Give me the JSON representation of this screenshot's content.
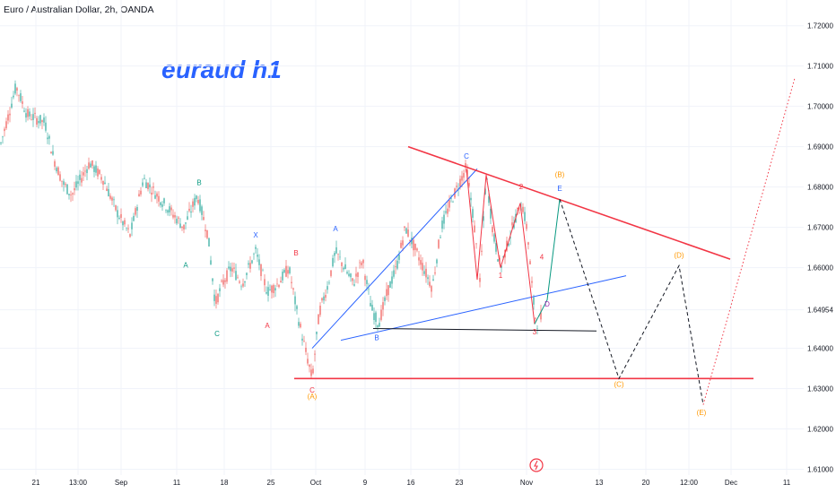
{
  "header": {
    "title": "Euro / Australian Dollar, 2h, OANDA"
  },
  "annotation": {
    "headline": "euraud h1"
  },
  "colors": {
    "bull": "#26a69a",
    "bear": "#ef5350",
    "red_line": "#f23645",
    "blue_line": "#2962ff",
    "black_line": "#131722",
    "orange": "#ff9800",
    "teal": "#089981",
    "purple": "#9c27b0",
    "grid": "#f0f3fa"
  },
  "chart_data": {
    "type": "candlestick",
    "symbol": "Euro / Australian Dollar",
    "interval": "2h",
    "source": "OANDA",
    "ylim": [
      1.605,
      1.723
    ],
    "y_ticks": [
      "1.72000",
      "1.71000",
      "1.70000",
      "1.69000",
      "1.68000",
      "1.67000",
      "1.66000",
      "1.64954",
      "1.64000",
      "1.63000",
      "1.62000",
      "1.61000"
    ],
    "x_ticks": [
      "21",
      "13:00",
      "Sep",
      "11",
      "18",
      "25",
      "Oct",
      "9",
      "16",
      "23",
      "Nov",
      "13",
      "20",
      "12:00",
      "Dec",
      "11"
    ],
    "price_anchors": [
      [
        0,
        1.69
      ],
      [
        18,
        1.705
      ],
      [
        30,
        1.698
      ],
      [
        50,
        1.696
      ],
      [
        60,
        1.687
      ],
      [
        70,
        1.681
      ],
      [
        80,
        1.678
      ],
      [
        100,
        1.686
      ],
      [
        115,
        1.682
      ],
      [
        130,
        1.674
      ],
      [
        145,
        1.668
      ],
      [
        160,
        1.682
      ],
      [
        175,
        1.678
      ],
      [
        190,
        1.674
      ],
      [
        205,
        1.67
      ],
      [
        220,
        1.678
      ],
      [
        232,
        1.668
      ],
      [
        240,
        1.651
      ],
      [
        248,
        1.656
      ],
      [
        258,
        1.66
      ],
      [
        270,
        1.656
      ],
      [
        285,
        1.664
      ],
      [
        298,
        1.654
      ],
      [
        310,
        1.656
      ],
      [
        322,
        1.66
      ],
      [
        332,
        1.648
      ],
      [
        340,
        1.64
      ],
      [
        348,
        1.6325
      ],
      [
        356,
        1.649
      ],
      [
        366,
        1.656
      ],
      [
        374,
        1.664
      ],
      [
        384,
        1.66
      ],
      [
        394,
        1.656
      ],
      [
        404,
        1.662
      ],
      [
        414,
        1.65
      ],
      [
        422,
        1.646
      ],
      [
        432,
        1.654
      ],
      [
        442,
        1.66
      ],
      [
        452,
        1.67
      ],
      [
        462,
        1.665
      ],
      [
        472,
        1.66
      ],
      [
        482,
        1.655
      ],
      [
        492,
        1.67
      ],
      [
        502,
        1.676
      ],
      [
        510,
        1.68
      ],
      [
        520,
        1.685
      ],
      [
        528,
        1.672
      ],
      [
        535,
        1.656
      ],
      [
        542,
        1.683
      ],
      [
        550,
        1.668
      ],
      [
        558,
        1.66
      ],
      [
        566,
        1.666
      ],
      [
        574,
        1.672
      ],
      [
        582,
        1.676
      ],
      [
        588,
        1.669
      ],
      [
        594,
        1.653
      ],
      [
        598,
        1.646
      ],
      [
        604,
        1.648
      ]
    ],
    "series": [
      {
        "name": "",
        "style": "solid",
        "color": "#2962ff",
        "points": [
          [
            348,
            1.64
          ],
          [
            532,
            1.6845
          ]
        ]
      },
      {
        "name": "",
        "style": "solid",
        "color": "#2962ff",
        "points": [
          [
            380,
            1.642
          ],
          [
            698,
            1.658
          ]
        ]
      },
      {
        "name": "",
        "style": "solid",
        "color": "#131722",
        "points": [
          [
            416,
            1.6449
          ],
          [
            665,
            1.6443
          ]
        ]
      },
      {
        "name": "",
        "style": "solid",
        "color": "#f23645",
        "points": [
          [
            455,
            1.69
          ],
          [
            814,
            1.6621
          ]
        ]
      },
      {
        "name": "",
        "style": "solid",
        "color": "#f23645",
        "points": [
          [
            328,
            1.6325
          ],
          [
            840,
            1.6325
          ]
        ]
      },
      {
        "name": "",
        "style": "solid",
        "color": "#f23645",
        "points": [
          [
            520,
            1.6845
          ],
          [
            532,
            1.657
          ],
          [
            542,
            1.683
          ],
          [
            558,
            1.66
          ],
          [
            580,
            1.676
          ],
          [
            596,
            1.646
          ]
        ]
      },
      {
        "name": "",
        "style": "solid",
        "color": "#089981",
        "points": [
          [
            596,
            1.646
          ],
          [
            610,
            1.652
          ],
          [
            624,
            1.677
          ]
        ]
      },
      {
        "name": "",
        "style": "dashed",
        "color": "#131722",
        "points": [
          [
            624,
            1.677
          ],
          [
            690,
            1.6325
          ],
          [
            757,
            1.6605
          ],
          [
            784,
            1.626
          ]
        ]
      },
      {
        "name": "",
        "style": "dotted",
        "color": "#f23645",
        "points": [
          [
            784,
            1.626
          ],
          [
            886,
            1.707
          ]
        ]
      }
    ],
    "labels": [
      {
        "text": "B",
        "x": 222,
        "y": 1.6805,
        "color": "#089981"
      },
      {
        "text": "A",
        "x": 207,
        "y": 1.66,
        "color": "#089981"
      },
      {
        "text": "C",
        "x": 242,
        "y": 1.643,
        "color": "#089981"
      },
      {
        "text": "X",
        "x": 285,
        "y": 1.6675,
        "color": "#2962ff"
      },
      {
        "text": "B",
        "x": 330,
        "y": 1.663,
        "color": "#f23645"
      },
      {
        "text": "A",
        "x": 298,
        "y": 1.645,
        "color": "#f23645"
      },
      {
        "text": "C",
        "x": 348,
        "y": 1.629,
        "color": "#f23645"
      },
      {
        "text": "(A)",
        "x": 348,
        "y": 1.6275,
        "color": "#ff9800"
      },
      {
        "text": "A",
        "x": 374,
        "y": 1.669,
        "color": "#2962ff"
      },
      {
        "text": "B",
        "x": 420,
        "y": 1.642,
        "color": "#2962ff"
      },
      {
        "text": "C",
        "x": 520,
        "y": 1.687,
        "color": "#2962ff"
      },
      {
        "text": "2",
        "x": 581,
        "y": 1.6795,
        "color": "#f23645"
      },
      {
        "text": "1",
        "x": 558,
        "y": 1.6575,
        "color": "#f23645"
      },
      {
        "text": "4",
        "x": 604,
        "y": 1.662,
        "color": "#f23645"
      },
      {
        "text": "3",
        "x": 596,
        "y": 1.6435,
        "color": "#f23645"
      },
      {
        "text": "D",
        "x": 610,
        "y": 1.6503,
        "color": "#9c27b0"
      },
      {
        "text": "E",
        "x": 624,
        "y": 1.679,
        "color": "#2962ff"
      },
      {
        "text": "(B)",
        "x": 624,
        "y": 1.6825,
        "color": "#ff9800"
      },
      {
        "text": "(C)",
        "x": 690,
        "y": 1.6305,
        "color": "#ff9800"
      },
      {
        "text": "(D)",
        "x": 757,
        "y": 1.6625,
        "color": "#ff9800"
      },
      {
        "text": "(E)",
        "x": 782,
        "y": 1.6235,
        "color": "#ff9800"
      }
    ],
    "grid": true
  },
  "branding": {
    "logo_icon": "tradingview-logo-icon"
  }
}
